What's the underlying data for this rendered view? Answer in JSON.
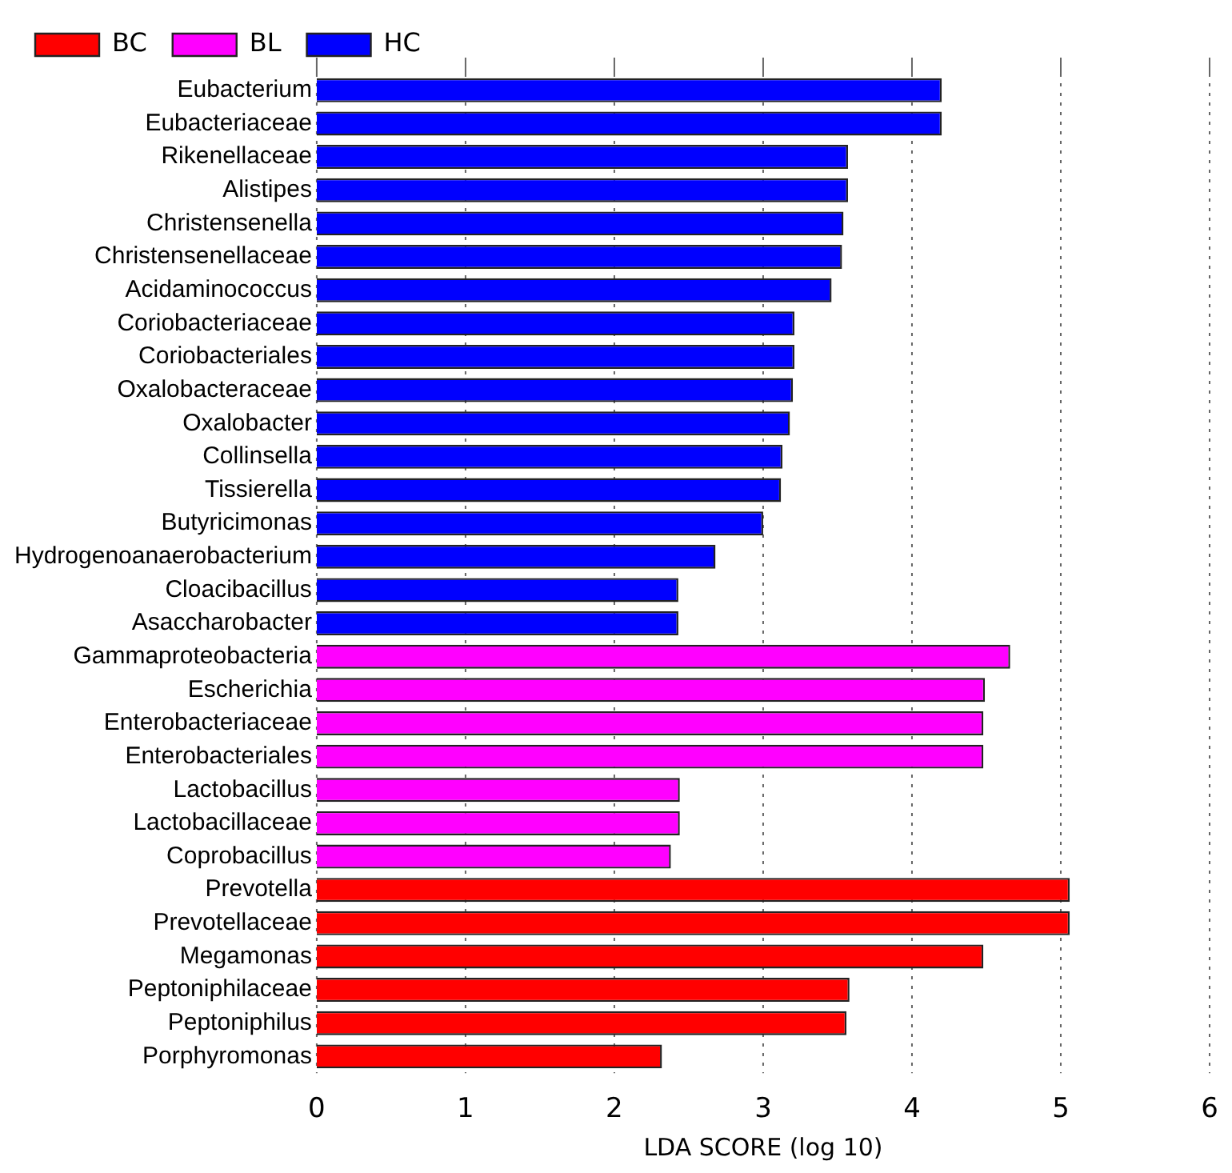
{
  "chart_data": {
    "type": "bar",
    "orientation": "horizontal",
    "xlabel": "LDA SCORE (log 10)",
    "categories": [
      "Eubacterium",
      "Eubacteriaceae",
      "Rikenellaceae",
      "Alistipes",
      "Christensenella",
      "Christensenellaceae",
      "Acidaminococcus",
      "Coriobacteriaceae",
      "Coriobacteriales",
      "Oxalobacteraceae",
      "Oxalobacter",
      "Collinsella",
      "Tissierella",
      "Butyricimonas",
      "Hydrogenoanaerobacterium",
      "Cloacibacillus",
      "Asaccharobacter",
      "Gammaproteobacteria",
      "Escherichia",
      "Enterobacteriaceae",
      "Enterobacteriales",
      "Lactobacillus",
      "Lactobacillaceae",
      "Coprobacillus",
      "Prevotella",
      "Prevotellaceae",
      "Megamonas",
      "Peptoniphilaceae",
      "Peptoniphilus",
      "Porphyromonas"
    ],
    "series": [
      {
        "name": "BC",
        "color": "#ff0000",
        "values": [
          null,
          null,
          null,
          null,
          null,
          null,
          null,
          null,
          null,
          null,
          null,
          null,
          null,
          null,
          null,
          null,
          null,
          null,
          null,
          null,
          null,
          null,
          null,
          null,
          5.06,
          5.06,
          4.48,
          3.58,
          3.56,
          2.32
        ]
      },
      {
        "name": "BL",
        "color": "#ff00ff",
        "values": [
          null,
          null,
          null,
          null,
          null,
          null,
          null,
          null,
          null,
          null,
          null,
          null,
          null,
          null,
          null,
          null,
          null,
          4.66,
          4.49,
          4.48,
          4.48,
          2.44,
          2.44,
          2.38,
          null,
          null,
          null,
          null,
          null,
          null
        ]
      },
      {
        "name": "HC",
        "color": "#0000ff",
        "values": [
          4.2,
          4.2,
          3.57,
          3.57,
          3.54,
          3.53,
          3.46,
          3.21,
          3.21,
          3.2,
          3.18,
          3.13,
          3.12,
          3.0,
          2.68,
          2.43,
          2.43,
          null,
          null,
          null,
          null,
          null,
          null,
          null,
          null,
          null,
          null,
          null,
          null,
          null
        ]
      }
    ],
    "xlim": [
      0,
      6
    ],
    "xticks": [
      0,
      1,
      2,
      3,
      4,
      5,
      6
    ],
    "grid": "x",
    "legend": "top left"
  }
}
